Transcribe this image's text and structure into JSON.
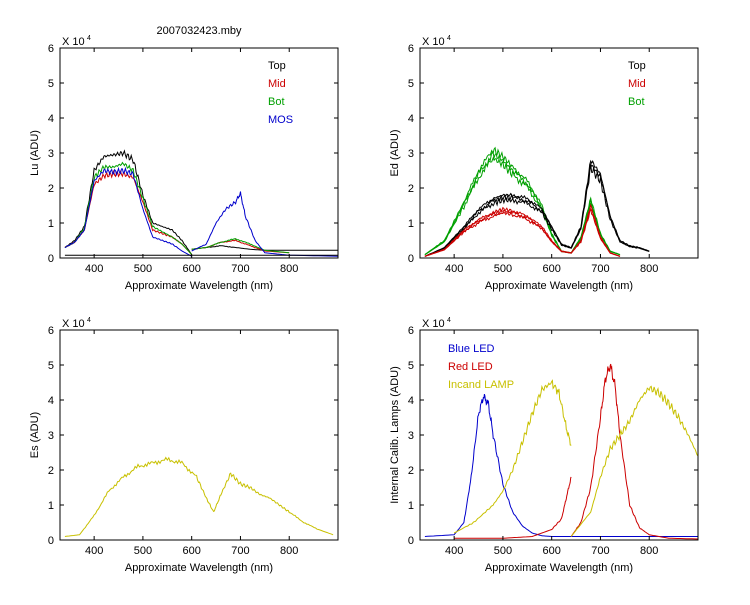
{
  "figure_title": "2007032423.mby",
  "colors": {
    "top": "#000000",
    "mid": "#cc0000",
    "bot": "#00a000",
    "mos": "#0000cc",
    "blue_led": "#0000cc",
    "red_led": "#cc0000",
    "lamp": "#c8c000"
  },
  "chart_data": [
    {
      "type": "line",
      "title": "2007032423.mby",
      "xlabel": "Approximate Wavelength (nm)",
      "ylabel": "Lu (ADU)",
      "yscale_label": "X 10",
      "yscale_exp": "4",
      "xlim": [
        330,
        900
      ],
      "ylim": [
        0,
        6
      ],
      "xticks": [
        400,
        500,
        600,
        700,
        800
      ],
      "yticks": [
        0,
        1,
        2,
        3,
        4,
        5,
        6
      ],
      "legend": [
        {
          "name": "Top",
          "color": "#000000"
        },
        {
          "name": "Mid",
          "color": "#cc0000"
        },
        {
          "name": "Bot",
          "color": "#00a000"
        },
        {
          "name": "MOS",
          "color": "#0000cc"
        }
      ],
      "series": [
        {
          "name": "Top",
          "color": "#000000",
          "x": [
            340,
            360,
            380,
            400,
            420,
            440,
            460,
            480,
            500,
            520,
            540,
            560,
            580,
            600
          ],
          "y": [
            0.3,
            0.5,
            0.9,
            2.5,
            2.9,
            2.95,
            3.0,
            2.8,
            1.8,
            1.0,
            0.9,
            0.8,
            0.5,
            0.1
          ]
        },
        {
          "name": "Mid",
          "color": "#cc0000",
          "x": [
            340,
            360,
            380,
            400,
            420,
            440,
            460,
            480,
            500,
            520,
            540,
            560,
            580,
            600
          ],
          "y": [
            0.3,
            0.45,
            0.8,
            2.1,
            2.35,
            2.4,
            2.4,
            2.3,
            1.6,
            0.8,
            0.7,
            0.6,
            0.4,
            0.1
          ]
        },
        {
          "name": "Bot",
          "color": "#00a000",
          "x": [
            340,
            360,
            380,
            400,
            420,
            440,
            460,
            480,
            500,
            520,
            540,
            560,
            580,
            600
          ],
          "y": [
            0.3,
            0.45,
            0.85,
            2.3,
            2.6,
            2.6,
            2.7,
            2.5,
            1.7,
            0.9,
            0.75,
            0.6,
            0.4,
            0.1
          ]
        },
        {
          "name": "MOS",
          "color": "#0000cc",
          "x": [
            340,
            360,
            380,
            400,
            420,
            440,
            460,
            480,
            500,
            520,
            540,
            560,
            580,
            600
          ],
          "y": [
            0.3,
            0.45,
            0.8,
            2.2,
            2.5,
            2.45,
            2.5,
            2.4,
            1.4,
            0.6,
            0.5,
            0.4,
            0.2,
            0.05
          ]
        },
        {
          "name": "Top",
          "color": "#000000",
          "x": [
            600,
            630,
            660,
            690,
            720,
            750,
            800,
            850,
            900
          ],
          "y": [
            0.25,
            0.3,
            0.35,
            0.3,
            0.25,
            0.22,
            0.22,
            0.22,
            0.22
          ]
        },
        {
          "name": "Mid",
          "color": "#cc0000",
          "x": [
            600,
            630,
            660,
            690,
            720,
            750,
            800
          ],
          "y": [
            0.25,
            0.3,
            0.45,
            0.5,
            0.35,
            0.2,
            0.15
          ]
        },
        {
          "name": "Bot",
          "color": "#00a000",
          "x": [
            600,
            630,
            660,
            690,
            720,
            750,
            800
          ],
          "y": [
            0.25,
            0.3,
            0.45,
            0.55,
            0.4,
            0.22,
            0.15
          ]
        },
        {
          "name": "MOS",
          "color": "#0000cc",
          "x": [
            600,
            630,
            650,
            670,
            690,
            700,
            710,
            730,
            750,
            800,
            900
          ],
          "y": [
            0.2,
            0.4,
            1.0,
            1.4,
            1.6,
            1.85,
            1.2,
            0.5,
            0.15,
            0.08,
            0.05
          ]
        },
        {
          "name": "Top",
          "color": "#000000",
          "x": [
            340,
            900
          ],
          "y": [
            0.08,
            0.08
          ]
        }
      ]
    },
    {
      "type": "line",
      "title": "",
      "xlabel": "Approximate Wavelength (nm)",
      "ylabel": "Ed (ADU)",
      "yscale_label": "X 10",
      "yscale_exp": "4",
      "xlim": [
        330,
        900
      ],
      "ylim": [
        0,
        6
      ],
      "xticks": [
        400,
        500,
        600,
        700,
        800
      ],
      "yticks": [
        0,
        1,
        2,
        3,
        4,
        5,
        6
      ],
      "legend": [
        {
          "name": "Top",
          "color": "#000000"
        },
        {
          "name": "Mid",
          "color": "#cc0000"
        },
        {
          "name": "Bot",
          "color": "#00a000"
        }
      ],
      "series": [
        {
          "name": "Bot",
          "color": "#00a000",
          "x": [
            340,
            380,
            420,
            450,
            480,
            500,
            520,
            550,
            580,
            600,
            620,
            640,
            660,
            680,
            700,
            720,
            740
          ],
          "y": [
            0.1,
            0.5,
            1.6,
            2.5,
            3.1,
            2.9,
            2.6,
            2.2,
            1.5,
            0.7,
            0.2,
            0.15,
            0.6,
            1.7,
            0.7,
            0.2,
            0.1
          ]
        },
        {
          "name": "Top",
          "color": "#000000",
          "x": [
            340,
            380,
            420,
            450,
            480,
            500,
            520,
            550,
            580,
            600,
            620,
            640,
            660,
            680,
            700,
            720,
            740,
            760,
            780,
            800
          ],
          "y": [
            0.05,
            0.3,
            0.9,
            1.4,
            1.7,
            1.8,
            1.8,
            1.7,
            1.4,
            0.9,
            0.4,
            0.3,
            0.9,
            2.8,
            2.4,
            1.2,
            0.5,
            0.35,
            0.3,
            0.2
          ]
        },
        {
          "name": "Mid",
          "color": "#cc0000",
          "x": [
            340,
            380,
            420,
            450,
            480,
            500,
            520,
            550,
            580,
            600,
            620,
            640,
            660,
            680,
            700,
            720,
            740
          ],
          "y": [
            0.05,
            0.25,
            0.8,
            1.1,
            1.3,
            1.4,
            1.35,
            1.2,
            0.9,
            0.5,
            0.2,
            0.15,
            0.5,
            1.5,
            0.6,
            0.15,
            0.05
          ]
        }
      ]
    },
    {
      "type": "line",
      "title": "",
      "xlabel": "Approximate Wavelength (nm)",
      "ylabel": "Es (ADU)",
      "yscale_label": "X 10",
      "yscale_exp": "4",
      "xlim": [
        330,
        900
      ],
      "ylim": [
        0,
        6
      ],
      "xticks": [
        400,
        500,
        600,
        700,
        800
      ],
      "yticks": [
        0,
        1,
        2,
        3,
        4,
        5,
        6
      ],
      "legend": [],
      "series": [
        {
          "name": "Es",
          "color": "#c8c000",
          "x": [
            340,
            370,
            400,
            430,
            460,
            490,
            520,
            550,
            580,
            610,
            630,
            645,
            660,
            680,
            700,
            720,
            740,
            760,
            780,
            800,
            830,
            860,
            890
          ],
          "y": [
            0.1,
            0.15,
            0.7,
            1.4,
            1.8,
            2.1,
            2.2,
            2.3,
            2.2,
            1.8,
            1.2,
            0.8,
            1.3,
            1.9,
            1.6,
            1.5,
            1.3,
            1.2,
            1.0,
            0.8,
            0.5,
            0.3,
            0.15
          ]
        }
      ]
    },
    {
      "type": "line",
      "title": "",
      "xlabel": "Approximate Wavelength (nm)",
      "ylabel": "Internal Calib. Lamps (ADU)",
      "yscale_label": "X 10",
      "yscale_exp": "4",
      "xlim": [
        330,
        900
      ],
      "ylim": [
        0,
        6
      ],
      "xticks": [
        400,
        500,
        600,
        700,
        800
      ],
      "yticks": [
        0,
        1,
        2,
        3,
        4,
        5,
        6
      ],
      "legend": [
        {
          "name": "Blue LED",
          "color": "#0000cc"
        },
        {
          "name": "Red LED",
          "color": "#cc0000"
        },
        {
          "name": "Incand LAMP",
          "color": "#c8c000"
        }
      ],
      "series": [
        {
          "name": "Blue LED",
          "color": "#0000cc",
          "x": [
            340,
            400,
            420,
            435,
            450,
            460,
            470,
            480,
            500,
            520,
            540,
            560,
            580,
            600,
            640,
            700,
            800,
            900
          ],
          "y": [
            0.1,
            0.15,
            0.5,
            1.8,
            3.6,
            4.1,
            3.9,
            3.0,
            1.6,
            0.8,
            0.4,
            0.2,
            0.12,
            0.1,
            0.1,
            0.1,
            0.1,
            0.1
          ]
        },
        {
          "name": "Incand LAMP",
          "color": "#c8c000",
          "x": [
            400,
            440,
            480,
            500,
            520,
            540,
            560,
            580,
            600,
            615,
            630,
            640
          ],
          "y": [
            0.2,
            0.5,
            1.0,
            1.4,
            2.0,
            2.8,
            3.6,
            4.3,
            4.5,
            4.2,
            3.2,
            2.7
          ]
        },
        {
          "name": "Red LED",
          "color": "#cc0000",
          "x": [
            400,
            500,
            560,
            600,
            620,
            630,
            640
          ],
          "y": [
            0.05,
            0.05,
            0.1,
            0.3,
            0.6,
            1.2,
            1.8
          ]
        },
        {
          "name": "Red LED",
          "color": "#cc0000",
          "x": [
            640,
            660,
            680,
            700,
            710,
            720,
            730,
            740,
            760,
            780,
            800,
            840,
            900
          ],
          "y": [
            0.1,
            0.5,
            1.5,
            3.5,
            4.6,
            5.0,
            4.4,
            3.0,
            1.0,
            0.35,
            0.15,
            0.05,
            0.03
          ]
        },
        {
          "name": "Incand LAMP",
          "color": "#c8c000",
          "x": [
            640,
            680,
            700,
            720,
            740,
            760,
            780,
            800,
            820,
            840,
            860,
            880,
            900
          ],
          "y": [
            0.1,
            0.8,
            1.8,
            2.6,
            3.0,
            3.4,
            4.0,
            4.35,
            4.2,
            3.9,
            3.5,
            3.0,
            2.4
          ]
        }
      ]
    }
  ]
}
